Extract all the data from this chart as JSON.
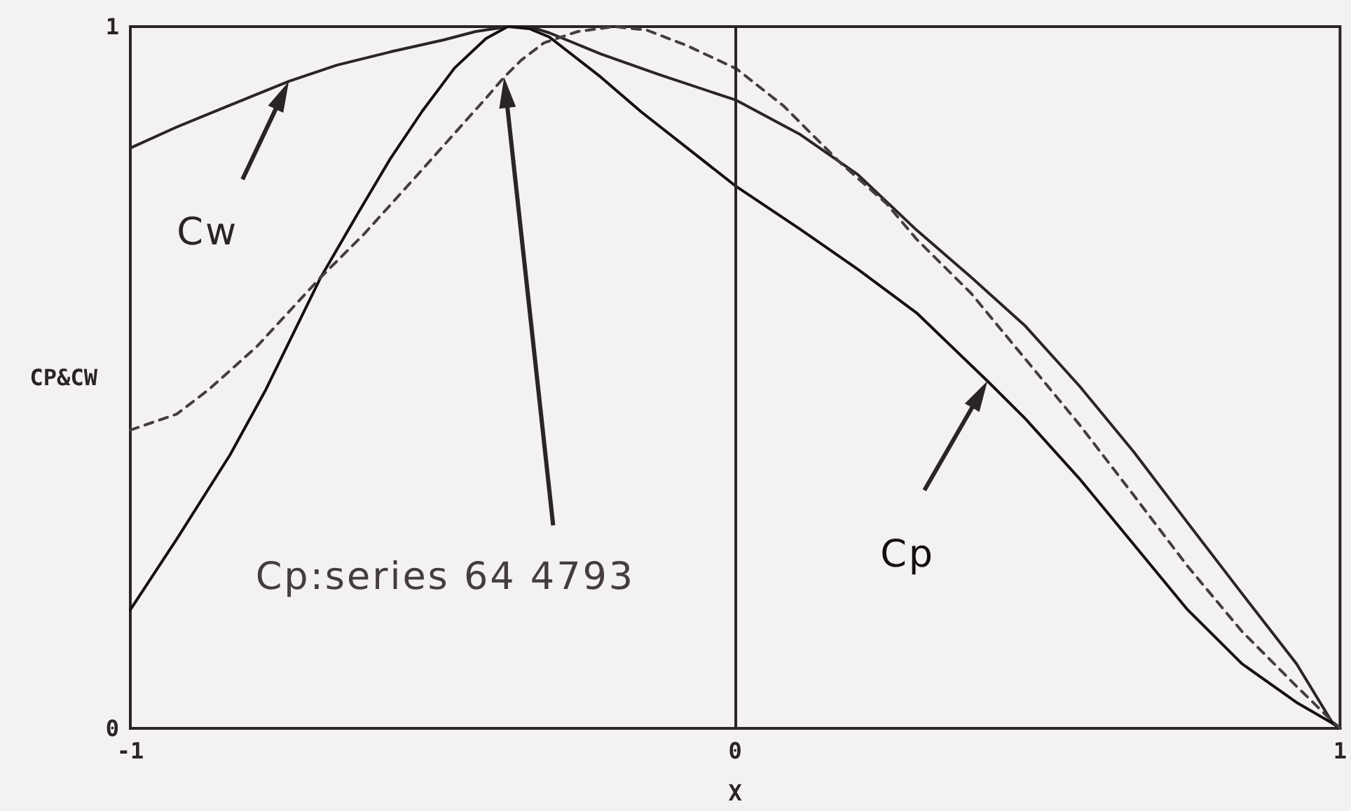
{
  "chart_data": {
    "type": "line",
    "xlabel": "X",
    "ylabel": "CP&CW",
    "xlim": [
      -1,
      1
    ],
    "ylim": [
      0,
      1
    ],
    "xticks": [
      -1,
      0,
      1
    ],
    "yticks": [
      0,
      1
    ],
    "grid": false,
    "legend": false,
    "marker": "none",
    "ref_lines": [
      {
        "axis": "x",
        "value": 0,
        "color": "#2a2427"
      }
    ],
    "series": [
      {
        "name": "Cw",
        "color": "#2a2427",
        "line_style": "solid",
        "x": [
          -1,
          -0.923,
          -0.835,
          -0.738,
          -0.659,
          -0.57,
          -0.482,
          -0.429,
          -0.376,
          -0.34,
          -0.307,
          -0.222,
          -0.127,
          0.002,
          0.108,
          0.203,
          0.3,
          0.39,
          0.48,
          0.569,
          0.659,
          0.748,
          0.838,
          0.928,
          0.986,
          1
        ],
        "values": [
          0.827,
          0.857,
          0.888,
          0.922,
          0.945,
          0.964,
          0.981,
          0.993,
          1,
          1,
          0.991,
          0.961,
          0.932,
          0.895,
          0.846,
          0.789,
          0.71,
          0.643,
          0.573,
          0.488,
          0.394,
          0.293,
          0.192,
          0.092,
          0.01,
          0
        ]
      },
      {
        "name": "Cp",
        "color": "#141012",
        "line_style": "solid",
        "x": [
          -1,
          -0.923,
          -0.835,
          -0.777,
          -0.685,
          -0.623,
          -0.57,
          -0.517,
          -0.464,
          -0.412,
          -0.376,
          -0.34,
          -0.307,
          -0.222,
          -0.156,
          0.002,
          0.108,
          0.203,
          0.3,
          0.417,
          0.48,
          0.569,
          0.659,
          0.748,
          0.838,
          0.928,
          0.986,
          1
        ],
        "values": [
          0.169,
          0.27,
          0.39,
          0.481,
          0.643,
          0.735,
          0.812,
          0.88,
          0.941,
          0.983,
          1,
          0.997,
          0.985,
          0.928,
          0.879,
          0.772,
          0.711,
          0.654,
          0.592,
          0.495,
          0.441,
          0.356,
          0.262,
          0.169,
          0.092,
          0.037,
          0.008,
          0
        ]
      },
      {
        "name": "Cp:series 64 4793",
        "color": "#443c40",
        "line_style": "dashed",
        "x": [
          -1,
          -0.923,
          -0.87,
          -0.791,
          -0.685,
          -0.614,
          -0.526,
          -0.438,
          -0.411,
          -0.382,
          -0.354,
          -0.316,
          -0.26,
          -0.2,
          -0.146,
          -0.08,
          0.002,
          0.08,
          0.175,
          0.25,
          0.3,
          0.39,
          0.48,
          0.569,
          0.659,
          0.748,
          0.838,
          0.928,
          0.985,
          1
        ],
        "values": [
          0.425,
          0.448,
          0.483,
          0.544,
          0.643,
          0.704,
          0.788,
          0.873,
          0.899,
          0.928,
          0.952,
          0.977,
          0.993,
          1,
          0.995,
          0.973,
          0.94,
          0.887,
          0.805,
          0.748,
          0.697,
          0.62,
          0.526,
          0.433,
          0.332,
          0.231,
          0.138,
          0.06,
          0.012,
          0
        ]
      }
    ]
  }
}
